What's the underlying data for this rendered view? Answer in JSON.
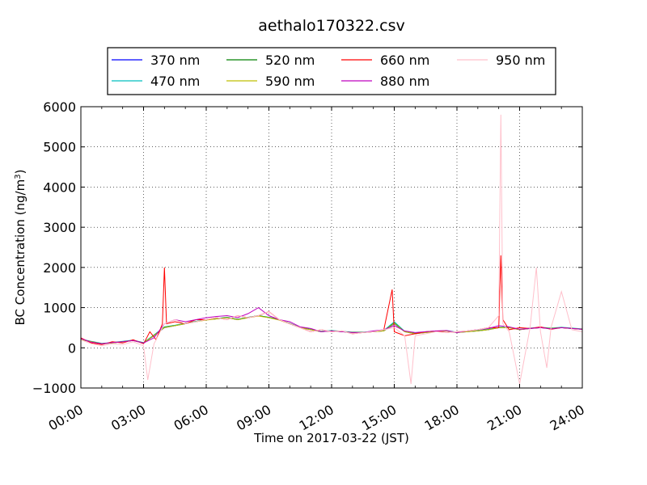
{
  "chart_data": {
    "type": "line",
    "title": "aethalo170322.csv",
    "xlabel": "Time on 2017-03-22 (JST)",
    "ylabel_main": "BC Concentration (ng/m",
    "ylabel_sup": "3",
    "ylabel_tail": ")",
    "xlim": [
      0,
      24
    ],
    "ylim": [
      -1000,
      6000
    ],
    "x_ticks": [
      0,
      3,
      6,
      9,
      12,
      15,
      18,
      21,
      24
    ],
    "x_tick_labels": [
      "00:00",
      "03:00",
      "06:00",
      "09:00",
      "12:00",
      "15:00",
      "18:00",
      "21:00",
      "24:00"
    ],
    "y_ticks": [
      -1000,
      0,
      1000,
      2000,
      3000,
      4000,
      5000,
      6000
    ],
    "y_tick_labels": [
      "−1000",
      "0",
      "1000",
      "2000",
      "3000",
      "4000",
      "5000",
      "6000"
    ],
    "grid": true,
    "legend_position": "top, above plot",
    "series": [
      {
        "name": "370 nm",
        "color": "#0000ff",
        "x": [
          0,
          0.5,
          1,
          1.5,
          2,
          2.5,
          3,
          3.5,
          4,
          4.5,
          5,
          5.5,
          6,
          6.5,
          7,
          7.5,
          8,
          8.5,
          9,
          9.5,
          10,
          10.5,
          11,
          11.5,
          12,
          12.5,
          13,
          13.5,
          14,
          14.5,
          15,
          15.5,
          16,
          16.5,
          17,
          17.5,
          18,
          18.5,
          19,
          19.5,
          20,
          20.5,
          21,
          21.5,
          22,
          22.5,
          23,
          23.5,
          24
        ],
        "y": [
          200,
          150,
          100,
          120,
          150,
          180,
          120,
          300,
          500,
          550,
          600,
          650,
          700,
          720,
          750,
          700,
          750,
          800,
          750,
          700,
          600,
          500,
          450,
          400,
          420,
          400,
          380,
          380,
          400,
          420,
          600,
          400,
          350,
          380,
          400,
          420,
          380,
          400,
          420,
          450,
          500,
          500,
          450,
          480,
          500,
          480,
          500,
          480,
          460
        ]
      },
      {
        "name": "470 nm",
        "color": "#00bfbf",
        "x": [
          0,
          0.5,
          1,
          1.5,
          2,
          2.5,
          3,
          3.5,
          4,
          4.5,
          5,
          5.5,
          6,
          6.5,
          7,
          7.5,
          8,
          8.5,
          9,
          9.5,
          10,
          10.5,
          11,
          11.5,
          12,
          12.5,
          13,
          13.5,
          14,
          14.5,
          15,
          15.5,
          16,
          16.5,
          17,
          17.5,
          18,
          18.5,
          19,
          19.5,
          20,
          20.5,
          21,
          21.5,
          22,
          22.5,
          23,
          23.5,
          24
        ],
        "y": [
          220,
          160,
          110,
          130,
          160,
          190,
          130,
          320,
          520,
          560,
          610,
          660,
          700,
          730,
          760,
          710,
          760,
          800,
          760,
          700,
          610,
          510,
          460,
          410,
          430,
          410,
          390,
          390,
          410,
          430,
          650,
          410,
          360,
          390,
          410,
          430,
          390,
          410,
          430,
          460,
          510,
          510,
          460,
          490,
          510,
          490,
          510,
          490,
          470
        ]
      },
      {
        "name": "520 nm",
        "color": "#008000",
        "x": [
          0,
          0.5,
          1,
          1.5,
          2,
          2.5,
          3,
          3.5,
          4,
          4.5,
          5,
          5.5,
          6,
          6.5,
          7,
          7.5,
          8,
          8.5,
          9,
          9.5,
          10,
          10.5,
          11,
          11.5,
          12,
          12.5,
          13,
          13.5,
          14,
          14.5,
          15,
          15.5,
          16,
          16.5,
          17,
          17.5,
          18,
          18.5,
          19,
          19.5,
          20,
          20.5,
          21,
          21.5,
          22,
          22.5,
          23,
          23.5,
          24
        ],
        "y": [
          210,
          155,
          105,
          125,
          155,
          185,
          125,
          310,
          510,
          555,
          605,
          655,
          700,
          725,
          755,
          705,
          755,
          800,
          755,
          700,
          605,
          505,
          455,
          405,
          425,
          405,
          385,
          385,
          405,
          425,
          620,
          405,
          355,
          385,
          405,
          425,
          385,
          405,
          425,
          455,
          505,
          505,
          455,
          485,
          505,
          485,
          505,
          485,
          465
        ]
      },
      {
        "name": "590 nm",
        "color": "#bfbf00",
        "x": [
          0,
          0.5,
          1,
          1.5,
          2,
          2.5,
          3,
          3.5,
          4,
          4.5,
          5,
          5.5,
          6,
          6.5,
          7,
          7.5,
          8,
          8.5,
          9,
          9.5,
          10,
          10.5,
          11,
          11.5,
          12,
          12.5,
          13,
          13.5,
          14,
          14.5,
          15,
          15.5,
          16,
          16.5,
          17,
          17.5,
          18,
          18.5,
          19,
          19.5,
          20,
          20.5,
          21,
          21.5,
          22,
          22.5,
          23,
          23.5,
          24
        ],
        "y": [
          205,
          150,
          100,
          120,
          150,
          180,
          120,
          305,
          505,
          550,
          600,
          650,
          690,
          720,
          750,
          700,
          750,
          790,
          750,
          690,
          600,
          500,
          450,
          400,
          420,
          400,
          380,
          380,
          400,
          420,
          610,
          400,
          350,
          380,
          400,
          420,
          380,
          400,
          420,
          450,
          500,
          500,
          450,
          480,
          500,
          480,
          500,
          480,
          460
        ]
      },
      {
        "name": "660 nm",
        "color": "#ff0000",
        "x": [
          0,
          0.5,
          1,
          1.5,
          2,
          2.5,
          3,
          3.3,
          3.6,
          3.9,
          4,
          4.1,
          4.5,
          5,
          5.5,
          6,
          6.5,
          7,
          7.5,
          8,
          8.5,
          9,
          9.5,
          10,
          10.5,
          11,
          11.5,
          12,
          12.5,
          13,
          13.5,
          14,
          14.5,
          14.9,
          15,
          15.5,
          16,
          16.5,
          17,
          17.5,
          18,
          18.5,
          19,
          19.5,
          20,
          20.1,
          20.2,
          20.5,
          21,
          21.5,
          22,
          22.5,
          23,
          23.5,
          24
        ],
        "y": [
          250,
          120,
          80,
          150,
          120,
          200,
          100,
          400,
          200,
          600,
          2000,
          600,
          650,
          600,
          700,
          700,
          750,
          700,
          800,
          750,
          800,
          900,
          700,
          600,
          500,
          400,
          450,
          400,
          420,
          350,
          380,
          400,
          450,
          1450,
          400,
          300,
          350,
          400,
          420,
          380,
          400,
          420,
          450,
          500,
          500,
          2300,
          700,
          450,
          500,
          480,
          520,
          460,
          500,
          480,
          460
        ]
      },
      {
        "name": "880 nm",
        "color": "#bf00bf",
        "x": [
          0,
          0.5,
          1,
          1.5,
          2,
          2.5,
          3,
          3.5,
          4,
          4.5,
          5,
          5.5,
          6,
          6.5,
          7,
          7.5,
          8,
          8.5,
          9,
          9.5,
          10,
          10.5,
          11,
          11.5,
          12,
          12.5,
          13,
          13.5,
          14,
          14.5,
          15,
          15.5,
          16,
          16.5,
          17,
          17.5,
          18,
          18.5,
          19,
          19.5,
          20,
          20.5,
          21,
          21.5,
          22,
          22.5,
          23,
          23.5,
          24
        ],
        "y": [
          230,
          140,
          100,
          130,
          150,
          180,
          120,
          250,
          600,
          700,
          650,
          700,
          750,
          780,
          800,
          750,
          850,
          1000,
          800,
          700,
          650,
          520,
          480,
          400,
          420,
          400,
          380,
          380,
          420,
          450,
          550,
          420,
          380,
          400,
          420,
          430,
          380,
          420,
          450,
          480,
          550,
          520,
          460,
          480,
          500,
          470,
          500,
          480,
          460
        ]
      },
      {
        "name": "950 nm",
        "color": "#ffc0cb",
        "x": [
          0,
          0.5,
          1,
          1.5,
          2,
          2.5,
          3,
          3.2,
          3.5,
          4,
          4.5,
          5,
          5.5,
          6,
          6.5,
          7,
          7.5,
          8,
          8.5,
          9,
          9.5,
          10,
          10.5,
          11,
          11.5,
          12,
          12.5,
          13,
          13.5,
          14,
          14.5,
          15,
          15.5,
          15.8,
          16,
          16.5,
          17,
          17.5,
          18,
          18.5,
          19,
          19.5,
          20,
          20.1,
          20.2,
          20.5,
          21,
          21.5,
          21.8,
          22,
          22.3,
          22.5,
          23,
          23.5,
          24
        ],
        "y": [
          200,
          100,
          50,
          100,
          80,
          150,
          50,
          -800,
          100,
          600,
          700,
          600,
          650,
          700,
          750,
          700,
          800,
          750,
          800,
          900,
          700,
          600,
          500,
          400,
          450,
          400,
          420,
          350,
          380,
          400,
          450,
          500,
          300,
          -900,
          300,
          350,
          400,
          380,
          400,
          420,
          450,
          500,
          800,
          5800,
          600,
          400,
          -900,
          500,
          2000,
          400,
          -500,
          500,
          1400,
          450,
          400
        ]
      }
    ]
  }
}
